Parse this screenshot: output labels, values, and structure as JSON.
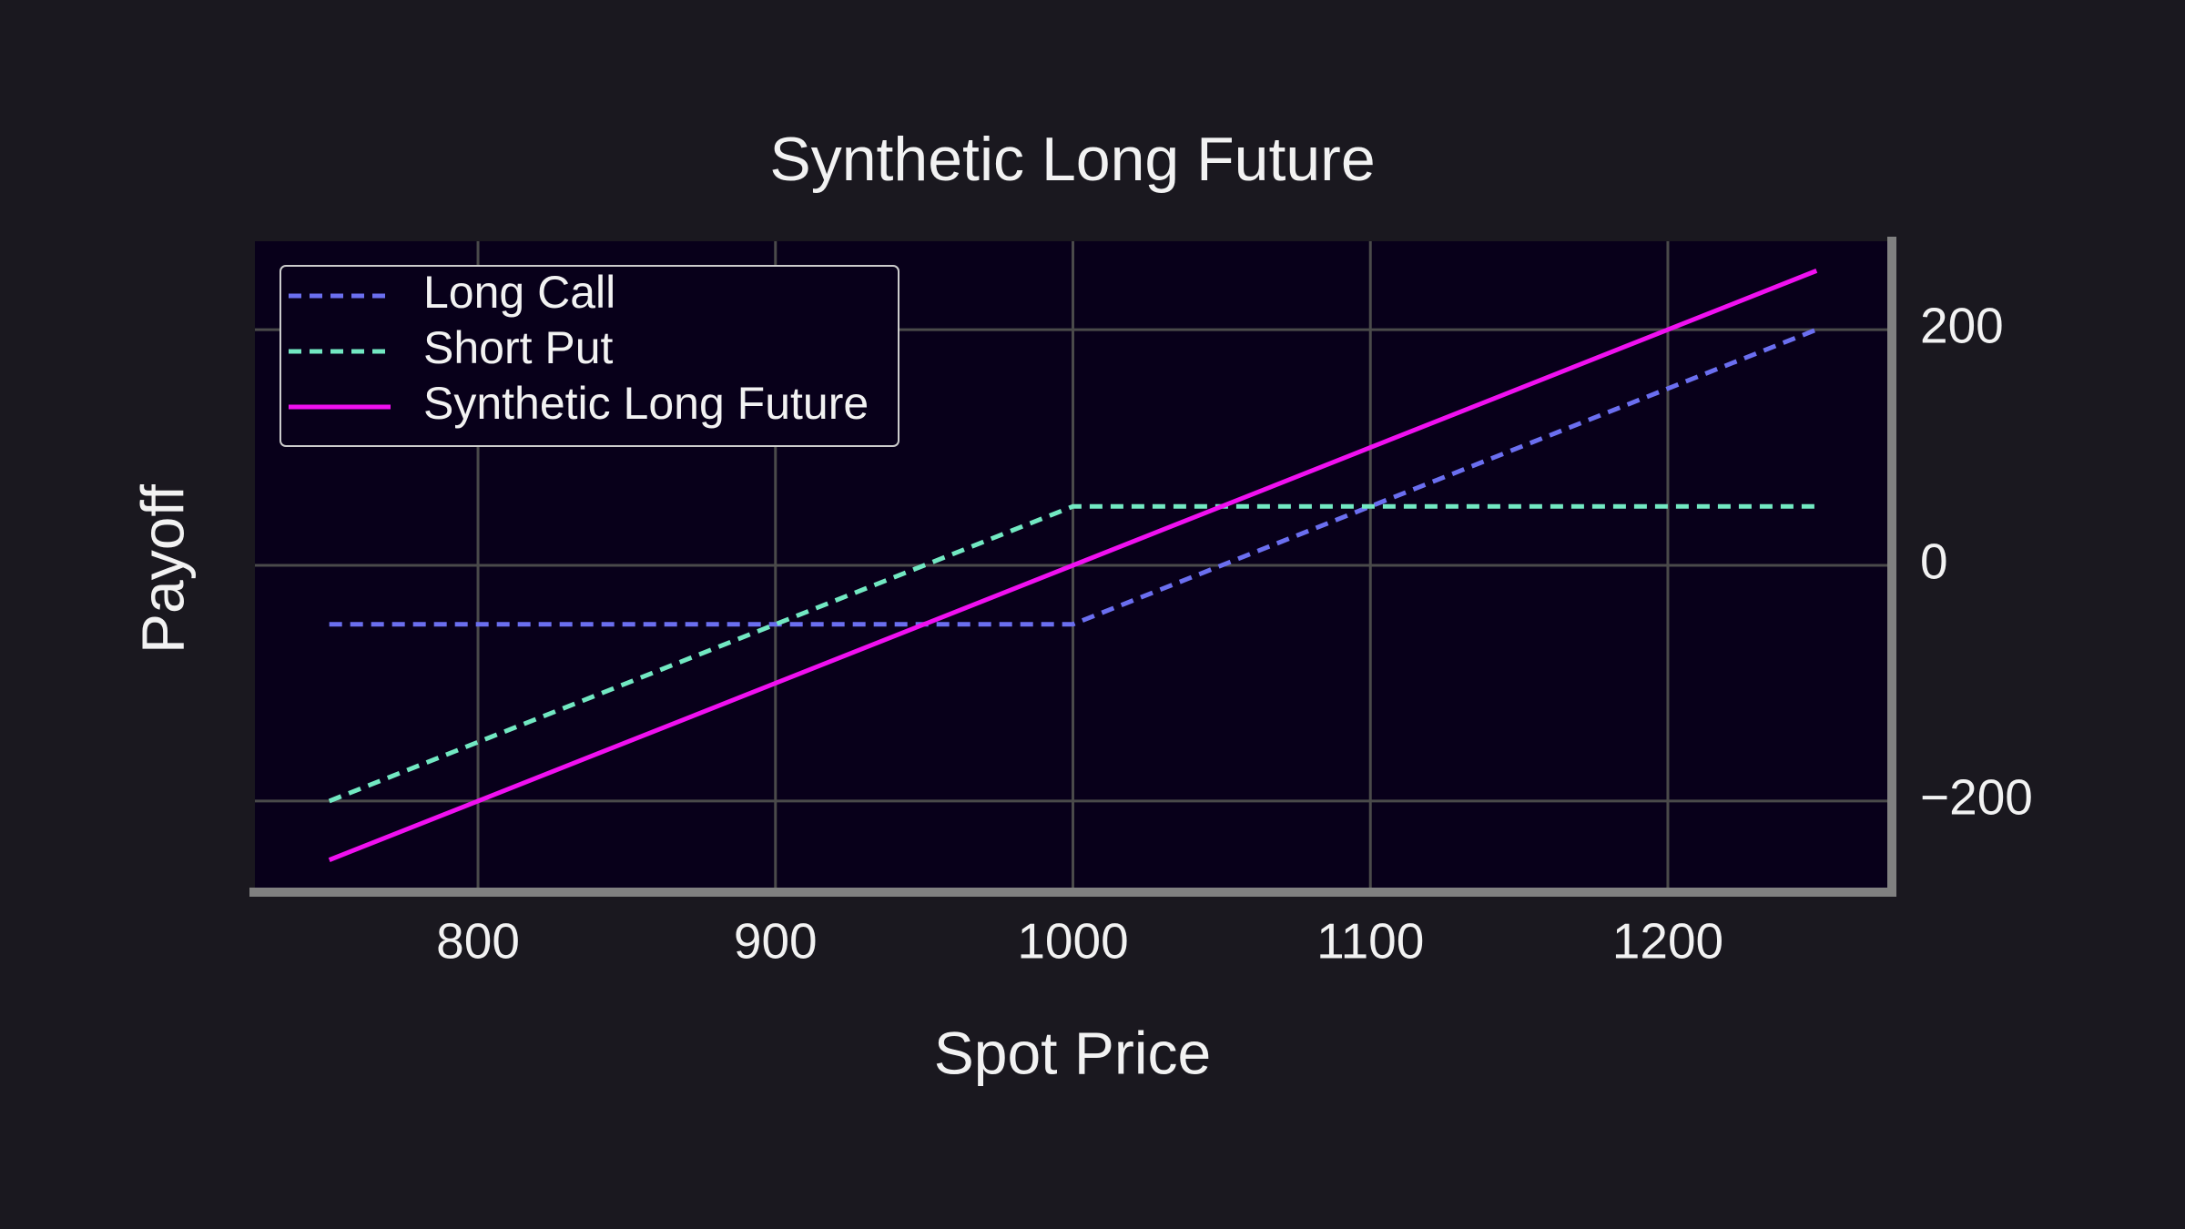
{
  "chart_data": {
    "type": "line",
    "title": "Synthetic Long Future",
    "x_label": "Spot Price",
    "y_label": "Payoff",
    "x": [
      750,
      1000,
      1250
    ],
    "series": [
      {
        "name": "Long Call",
        "color": "#6b6ff0",
        "dashed": true,
        "values": [
          -50,
          -50,
          200
        ]
      },
      {
        "name": "Short Put",
        "color": "#72e8c2",
        "dashed": true,
        "values": [
          -200,
          50,
          50
        ]
      },
      {
        "name": "Synthetic Long Future",
        "color": "#f010f0",
        "dashed": false,
        "values": [
          -250,
          0,
          250
        ]
      }
    ],
    "xlim": [
      725,
      1275
    ],
    "xticks": [
      800,
      900,
      1000,
      1100,
      1200
    ],
    "ylim": [
      -275,
      275
    ],
    "yticks": [
      {
        "value": -200,
        "label": "−200"
      },
      0,
      200
    ],
    "y_axis_side": "right",
    "grid": true,
    "legend": "upper left"
  }
}
